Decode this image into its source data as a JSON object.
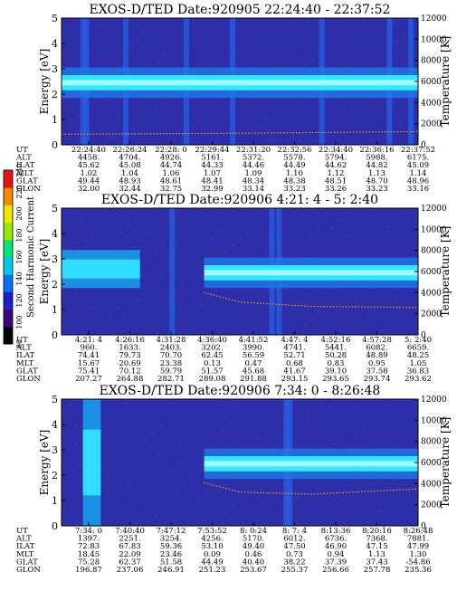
{
  "chart_data": [
    {
      "type": "heatmap",
      "title": "EXOS-D/TED",
      "date_label": "Date:920905",
      "time_range": "22:24:40 - 22:37:52",
      "ylabel": "Energy [eV]",
      "y2label": "Temperature [K]",
      "ylim": [
        0,
        5
      ],
      "y2lim": [
        0,
        12000
      ],
      "yticks": [
        "0",
        "1",
        "2",
        "3",
        "4",
        "5"
      ],
      "y2ticks": [
        "0",
        "2000",
        "4000",
        "6000",
        "8000",
        "10000",
        "12000"
      ],
      "band": {
        "center": 2.45,
        "half_width": 0.3
      },
      "temperature_curve": [
        [
          0,
          1000
        ],
        [
          0.5,
          1100
        ],
        [
          1,
          1250
        ]
      ],
      "rows": [
        {
          "label": "UT",
          "values": [
            "22:24:40",
            "22:26:24",
            "22:28: 0",
            "22:29:44",
            "22:31:20",
            "22:32:56",
            "22:34:40",
            "22:36:16",
            "22:37:52"
          ]
        },
        {
          "label": "ALT",
          "values": [
            "4458.",
            "4704.",
            "4926.",
            "5161.",
            "5372.",
            "5578.",
            "5794.",
            "5988.",
            "6175."
          ]
        },
        {
          "label": "ILAT",
          "values": [
            "45.62",
            "45.08",
            "44.74",
            "44.33",
            "44.46",
            "44.49",
            "44.62",
            "44.82",
            "45.09"
          ]
        },
        {
          "label": "MLT",
          "values": [
            "1.02",
            "1.04",
            "1.06",
            "1.07",
            "1.09",
            "1.10",
            "1.12",
            "1.13",
            "1.14"
          ]
        },
        {
          "label": "GLAT",
          "values": [
            "49.44",
            "48.93",
            "48.61",
            "48.41",
            "48.34",
            "48.38",
            "48.51",
            "48.70",
            "48.96"
          ]
        },
        {
          "label": "GLON",
          "values": [
            "32.00",
            "32.44",
            "32.75",
            "32.99",
            "33.14",
            "33.23",
            "33.26",
            "33.23",
            "33.16"
          ]
        }
      ]
    },
    {
      "type": "heatmap",
      "title": "EXOS-D/TED",
      "date_label": "Date:920906",
      "time_range": "4:21: 4 - 5: 2:40",
      "ylabel": "Energy [eV]",
      "y2label": "Temperature [K]",
      "ylim": [
        0,
        5
      ],
      "y2lim": [
        0,
        12000
      ],
      "yticks": [
        "0",
        "1",
        "2",
        "3",
        "4",
        "5"
      ],
      "y2ticks": [
        "0",
        "2000",
        "4000",
        "6000",
        "8000",
        "10000",
        "12000"
      ],
      "band": {
        "center": 2.45,
        "half_width": 0.3,
        "start": 0.4
      },
      "temperature_curve": [
        [
          0.4,
          4000
        ],
        [
          0.5,
          3100
        ],
        [
          0.7,
          2700
        ],
        [
          1,
          2600
        ]
      ],
      "rows": [
        {
          "label": "UT",
          "values": [
            "4:21: 4",
            "4:26:16",
            "4:31:28",
            "4:36:40",
            "4:41:52",
            "4:47: 4",
            "4:52:16",
            "4:57:28",
            "5: 2:40"
          ]
        },
        {
          "label": "ALT",
          "values": [
            "960.",
            "1633.",
            "2403.",
            "3202.",
            "3990.",
            "4741.",
            "5441.",
            "6082.",
            "6659."
          ]
        },
        {
          "label": "ILAT",
          "values": [
            "74.41",
            "79.73",
            "70.70",
            "62.45",
            "56.59",
            "52.71",
            "50.28",
            "48.89",
            "48.25"
          ]
        },
        {
          "label": "MLT",
          "values": [
            "15.67",
            "20.69",
            "23.38",
            "0.13",
            "0.47",
            "0.68",
            "0.83",
            "0.95",
            "1.05"
          ]
        },
        {
          "label": "GLAT",
          "values": [
            "75.41",
            "70.12",
            "59.79",
            "51.57",
            "45.68",
            "41.67",
            "39.10",
            "37.58",
            "36.83"
          ]
        },
        {
          "label": "GLON",
          "values": [
            "207.27",
            "264.88",
            "282.71",
            "289.08",
            "291.88",
            "293.15",
            "293.65",
            "293.74",
            "293.62"
          ]
        }
      ]
    },
    {
      "type": "heatmap",
      "title": "EXOS-D/TED",
      "date_label": "Date:920906",
      "time_range": "7:34: 0 - 8:26:48",
      "ylabel": "Energy [eV]",
      "y2label": "Temperature [K]",
      "ylim": [
        0,
        5
      ],
      "y2lim": [
        0,
        12000
      ],
      "yticks": [
        "0",
        "1",
        "2",
        "3",
        "4",
        "5"
      ],
      "y2ticks": [
        "0",
        "2000",
        "4000",
        "6000",
        "8000",
        "10000",
        "12000"
      ],
      "band": {
        "center": 2.45,
        "half_width": 0.3,
        "start": 0.4
      },
      "temperature_curve": [
        [
          0.4,
          4100
        ],
        [
          0.5,
          3200
        ],
        [
          0.7,
          3000
        ],
        [
          1,
          3500
        ]
      ],
      "rows": [
        {
          "label": "UT",
          "values": [
            "7:34: 0",
            "7:40:40",
            "7:47:12",
            "7:53:52",
            "8: 0:24",
            "8: 7: 4",
            "8:13:36",
            "8:20:16",
            "8:26:48"
          ]
        },
        {
          "label": "ALT",
          "values": [
            "1397.",
            "2251.",
            "3254.",
            "4256.",
            "5170.",
            "6012.",
            "6736.",
            "7368.",
            "7881."
          ]
        },
        {
          "label": "ILAT",
          "values": [
            "72.83",
            "67.83",
            "59.36",
            "53.10",
            "49.40",
            "47.50",
            "46.90",
            "47.15",
            "47.99"
          ]
        },
        {
          "label": "MLT",
          "values": [
            "18.45",
            "22.09",
            "23.46",
            "0.09",
            "0.46",
            "0.73",
            "0.94",
            "1.13",
            "1.30"
          ]
        },
        {
          "label": "GLAT",
          "values": [
            "75.28",
            "62.37",
            "51.58",
            "44.49",
            "40.40",
            "38.22",
            "37.39",
            "37.43",
            "-54.86"
          ]
        },
        {
          "label": "GLON",
          "values": [
            "196.87",
            "237.06",
            "246.91",
            "251.23",
            "253.67",
            "255.37",
            "256.66",
            "257.78",
            "235.36"
          ]
        }
      ]
    }
  ],
  "colorbar": {
    "label": "Second Harmonic Current",
    "ticks": [
      "80",
      "100",
      "120",
      "140",
      "160",
      "180",
      "200",
      "220",
      "240"
    ],
    "colors": [
      "#000000",
      "#3a0a7a",
      "#1e1ec8",
      "#0a6ef0",
      "#00c8e6",
      "#00e678",
      "#96e600",
      "#f0e600",
      "#f08c00",
      "#e61414"
    ]
  },
  "colors": {
    "background": "#2e2fa8",
    "band": "#34e6ff",
    "band_core": "#b4fcff",
    "temperature_curve": "#ff8c3c"
  }
}
